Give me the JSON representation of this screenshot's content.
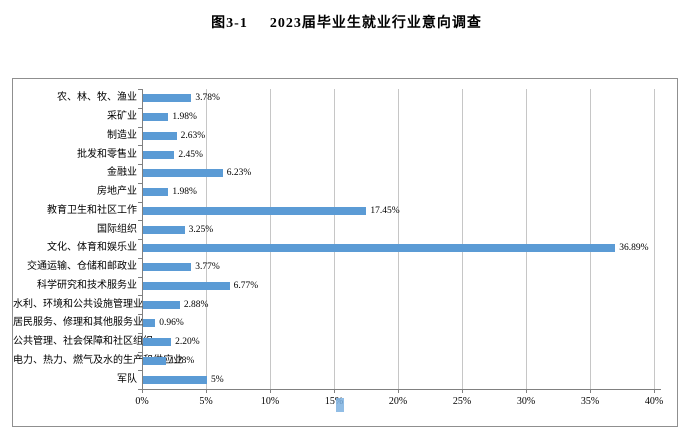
{
  "title": {
    "figure_no": "图3-1",
    "text": "2023届毕业生就业行业意向调查"
  },
  "colors": {
    "bar": "#5B9BD5",
    "gridline": "#C6C6C6",
    "axis": "#808080",
    "frame_border": "#8F8F8F",
    "artifact": "#7EB1E0",
    "text": "#000000"
  },
  "chart_data": {
    "type": "bar",
    "orientation": "horizontal",
    "title": "图3-1 2023届毕业生就业行业意向调查",
    "xlabel": "",
    "ylabel": "",
    "xlim": [
      0,
      40
    ],
    "grid": "vertical",
    "legend": "none",
    "categories": [
      "农、林、牧、渔业",
      "采矿业",
      "制造业",
      "批发和零售业",
      "金融业",
      "房地产业",
      "教育卫生和社区工作",
      "国际组织",
      "文化、体育和娱乐业",
      "交通运输、仓储和邮政业",
      "科学研究和技术服务业",
      "水利、环境和公共设施管理业",
      "居民服务、修理和其他服务业",
      "公共管理、社会保障和社区组织",
      "电力、热力、燃气及水的生产和供应业",
      "军队"
    ],
    "values": [
      3.78,
      1.98,
      2.63,
      2.45,
      6.23,
      1.98,
      17.45,
      3.25,
      36.89,
      3.77,
      6.77,
      2.88,
      0.96,
      2.2,
      1.78,
      5
    ],
    "value_labels": [
      "3.78%",
      "1.98%",
      "2.63%",
      "2.45%",
      "6.23%",
      "1.98%",
      "17.45%",
      "3.25%",
      "36.89%",
      "3.77%",
      "6.77%",
      "2.88%",
      "0.96%",
      "2.20%",
      "1.78%",
      "5%"
    ],
    "x_ticks": [
      "0%",
      "5%",
      "10%",
      "15%",
      "20%",
      "25%",
      "30%",
      "35%",
      "40%"
    ]
  }
}
